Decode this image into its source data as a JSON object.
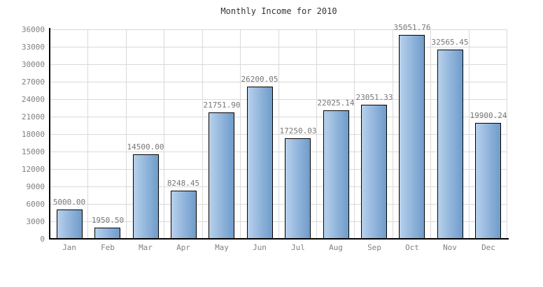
{
  "chart_data": {
    "type": "bar",
    "title": "Monthly Income for 2010",
    "categories": [
      "Jan",
      "Feb",
      "Mar",
      "Apr",
      "May",
      "Jun",
      "Jul",
      "Aug",
      "Sep",
      "Oct",
      "Nov",
      "Dec"
    ],
    "values": [
      5000.0,
      1950.5,
      14500.0,
      8248.45,
      21751.9,
      26200.05,
      17250.03,
      22025.14,
      23051.33,
      35051.76,
      32565.45,
      19900.24
    ],
    "value_labels": [
      "5000.00",
      "1950.50",
      "14500.00",
      "8248.45",
      "21751.90",
      "26200.05",
      "17250.03",
      "22025.14",
      "23051.33",
      "35051.76",
      "32565.45",
      "19900.24"
    ],
    "xlabel": "",
    "ylabel": "",
    "ylim": [
      0,
      36000
    ],
    "ytick_step": 3000,
    "ytick_labels": [
      "0",
      "3000",
      "6000",
      "9000",
      "12000",
      "15000",
      "18000",
      "21000",
      "24000",
      "27000",
      "30000",
      "33000",
      "36000"
    ],
    "grid": true,
    "legend": "none",
    "colors": {
      "bar_gradient_left": "#b7d1ec",
      "bar_gradient_right": "#6f9cca",
      "bar_border": "#000000",
      "gridline": "#d9d9d9",
      "axis": "#000000",
      "tick_text": "#808080",
      "value_text": "#777777",
      "title_text": "#333333",
      "background": "#ffffff"
    }
  }
}
